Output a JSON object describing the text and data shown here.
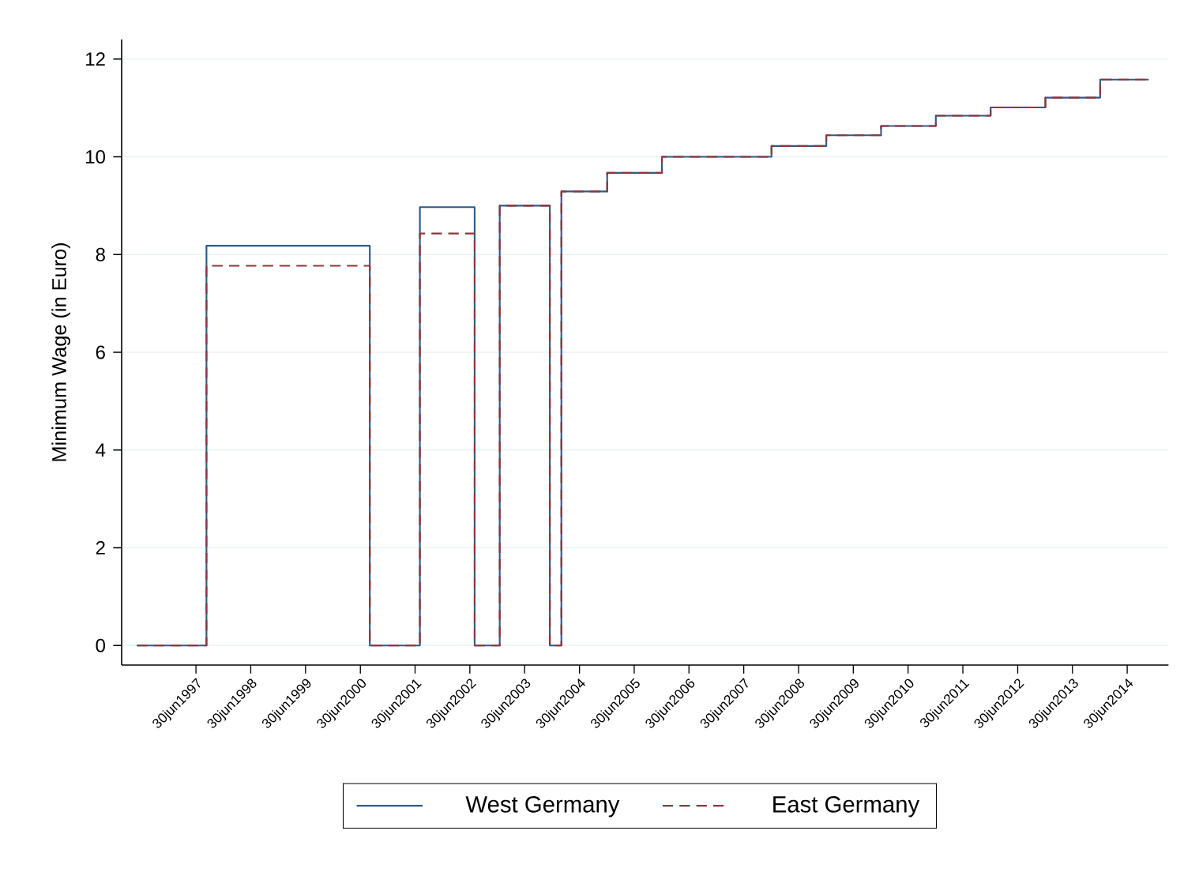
{
  "chart_data": {
    "type": "step",
    "ylabel": "Minimum Wage (in Euro)",
    "xlim": [
      "1996-02-20",
      "2015-04-01"
    ],
    "ylim": [
      -0.4,
      12.4
    ],
    "xticks": [
      {
        "value": "1997-06-30",
        "label": "30jun1997"
      },
      {
        "value": "1998-06-30",
        "label": "30jun1998"
      },
      {
        "value": "1999-06-30",
        "label": "30jun1999"
      },
      {
        "value": "2000-06-30",
        "label": "30jun2000"
      },
      {
        "value": "2001-06-30",
        "label": "30jun2001"
      },
      {
        "value": "2002-06-30",
        "label": "30jun2002"
      },
      {
        "value": "2003-06-30",
        "label": "30jun2003"
      },
      {
        "value": "2004-06-30",
        "label": "30jun2004"
      },
      {
        "value": "2005-06-30",
        "label": "30jun2005"
      },
      {
        "value": "2006-06-30",
        "label": "30jun2006"
      },
      {
        "value": "2007-06-30",
        "label": "30jun2007"
      },
      {
        "value": "2008-06-30",
        "label": "30jun2008"
      },
      {
        "value": "2009-06-30",
        "label": "30jun2009"
      },
      {
        "value": "2010-06-30",
        "label": "30jun2010"
      },
      {
        "value": "2011-06-30",
        "label": "30jun2011"
      },
      {
        "value": "2012-06-30",
        "label": "30jun2012"
      },
      {
        "value": "2013-06-30",
        "label": "30jun2013"
      },
      {
        "value": "2014-06-30",
        "label": "30jun2014"
      }
    ],
    "yticks": [
      0,
      2,
      4,
      6,
      8,
      10,
      12
    ],
    "grid": "y",
    "legend": "bottom",
    "marker": "none",
    "x": [
      "1996-06-01",
      "1997-09-08",
      "2000-09-01",
      "2001-08-01",
      "2002-08-01",
      "2003-01-15",
      "2003-12-15",
      "2004-03-01",
      "2005-01-01",
      "2006-01-01",
      "2008-01-01",
      "2009-01-01",
      "2010-01-01",
      "2011-01-01",
      "2012-01-01",
      "2013-01-01",
      "2014-01-01",
      "2014-11-20"
    ],
    "series": [
      {
        "name": "West Germany",
        "color": "#2e5a88",
        "line_style": "solid",
        "values": [
          0,
          8.18,
          0,
          8.97,
          0,
          9.0,
          0,
          9.29,
          9.67,
          10.0,
          10.22,
          10.44,
          10.63,
          10.84,
          11.01,
          11.21,
          11.58,
          11.58
        ]
      },
      {
        "name": "East Germany",
        "color": "#90353b",
        "line_style": "dashed",
        "values": [
          0,
          7.77,
          0,
          8.43,
          0,
          9.0,
          0,
          9.29,
          9.67,
          10.0,
          10.22,
          10.44,
          10.63,
          10.84,
          11.01,
          11.21,
          11.58,
          11.58
        ]
      }
    ]
  }
}
